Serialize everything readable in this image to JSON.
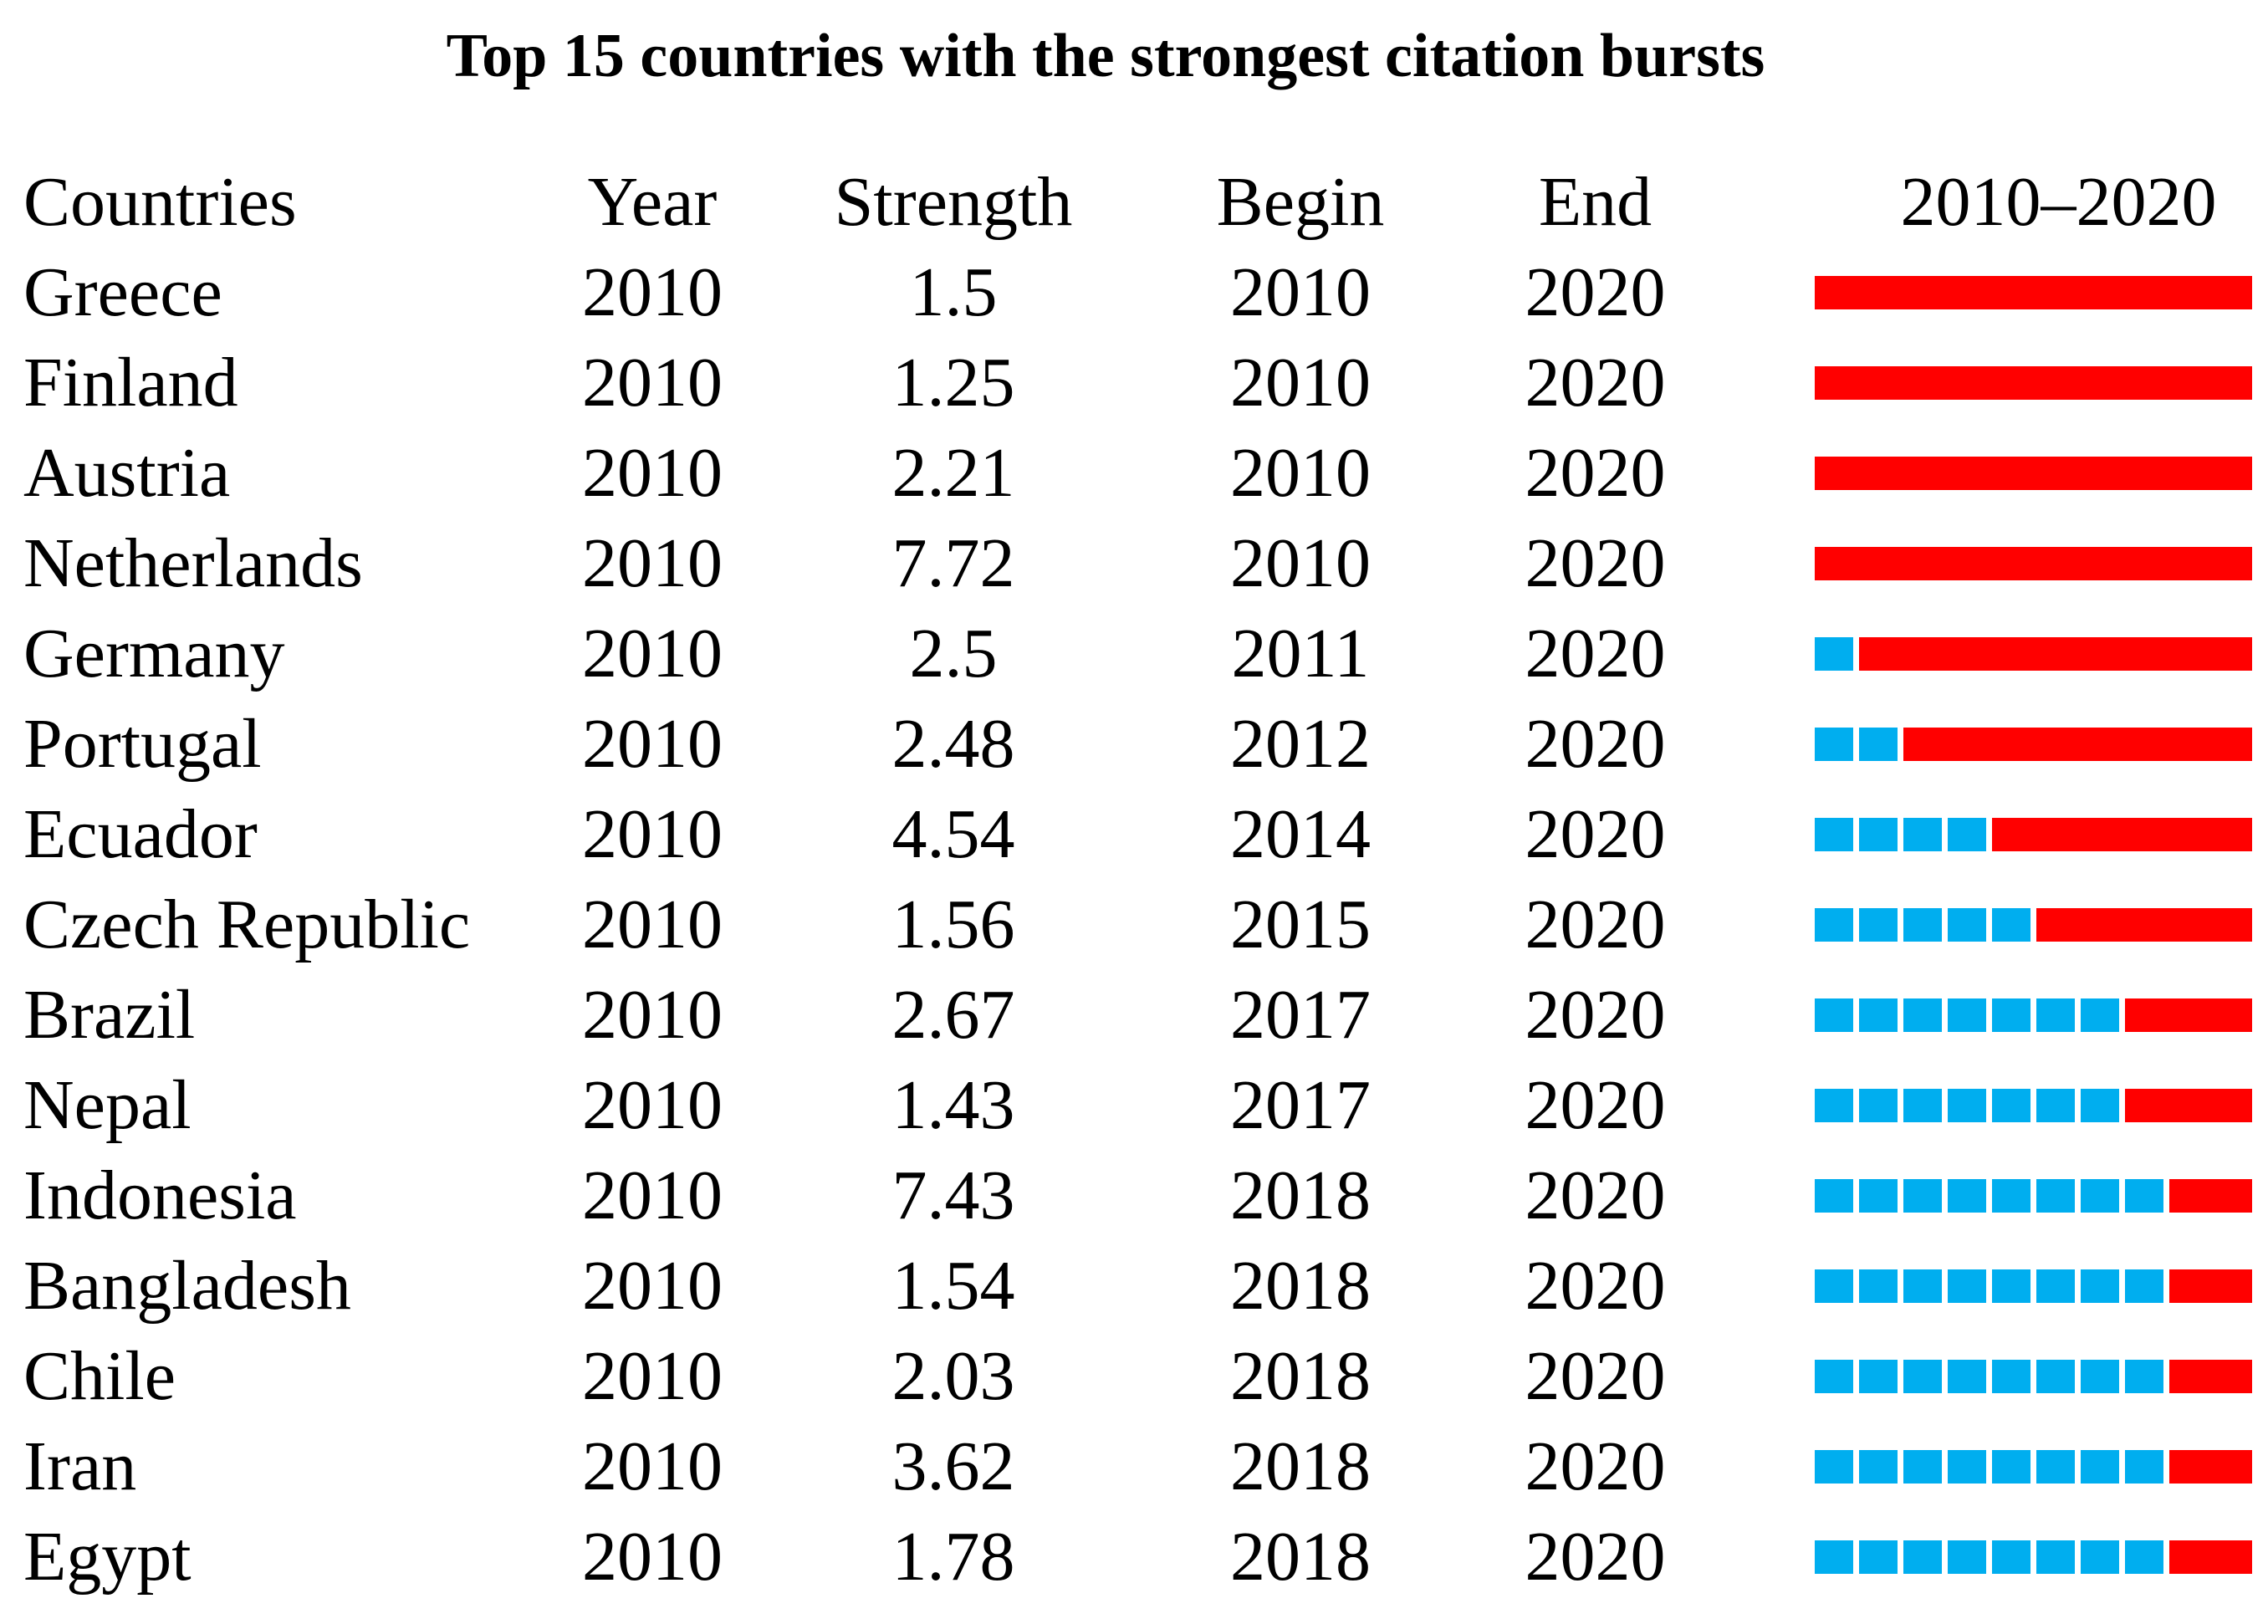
{
  "figure": {
    "title": "Top 15 countries with the strongest citation bursts",
    "columns": {
      "country": "Countries",
      "year": "Year",
      "strength": "Strength",
      "begin": "Begin",
      "end": "End",
      "timeline": "2010–2020"
    },
    "colors": {
      "burst": "#FF0000",
      "non_burst": "#00AEEF"
    }
  },
  "chart_data": {
    "type": "table",
    "title": "Top 15 countries with the strongest citation bursts",
    "columns": [
      "Countries",
      "Year",
      "Strength",
      "Begin",
      "End",
      "2010–2020"
    ],
    "timeline_range": [
      2010,
      2020
    ],
    "legend": {
      "burst_color": "#FF0000",
      "burst_meaning": "citation burst period",
      "non_burst_color": "#00AEEF",
      "non_burst_meaning": "non-burst year"
    },
    "rows": [
      {
        "country": "Greece",
        "year": 2010,
        "strength": 1.5,
        "begin": 2010,
        "end": 2020
      },
      {
        "country": "Finland",
        "year": 2010,
        "strength": 1.25,
        "begin": 2010,
        "end": 2020
      },
      {
        "country": "Austria",
        "year": 2010,
        "strength": 2.21,
        "begin": 2010,
        "end": 2020
      },
      {
        "country": "Netherlands",
        "year": 2010,
        "strength": 7.72,
        "begin": 2010,
        "end": 2020
      },
      {
        "country": "Germany",
        "year": 2010,
        "strength": 2.5,
        "begin": 2011,
        "end": 2020
      },
      {
        "country": "Portugal",
        "year": 2010,
        "strength": 2.48,
        "begin": 2012,
        "end": 2020
      },
      {
        "country": "Ecuador",
        "year": 2010,
        "strength": 4.54,
        "begin": 2014,
        "end": 2020
      },
      {
        "country": "Czech Republic",
        "year": 2010,
        "strength": 1.56,
        "begin": 2015,
        "end": 2020
      },
      {
        "country": "Brazil",
        "year": 2010,
        "strength": 2.67,
        "begin": 2017,
        "end": 2020
      },
      {
        "country": "Nepal",
        "year": 2010,
        "strength": 1.43,
        "begin": 2017,
        "end": 2020
      },
      {
        "country": "Indonesia",
        "year": 2010,
        "strength": 7.43,
        "begin": 2018,
        "end": 2020
      },
      {
        "country": "Bangladesh",
        "year": 2010,
        "strength": 1.54,
        "begin": 2018,
        "end": 2020
      },
      {
        "country": "Chile",
        "year": 2010,
        "strength": 2.03,
        "begin": 2018,
        "end": 2020
      },
      {
        "country": "Iran",
        "year": 2010,
        "strength": 3.62,
        "begin": 2018,
        "end": 2020
      },
      {
        "country": "Egypt",
        "year": 2010,
        "strength": 1.78,
        "begin": 2018,
        "end": 2020
      }
    ]
  }
}
